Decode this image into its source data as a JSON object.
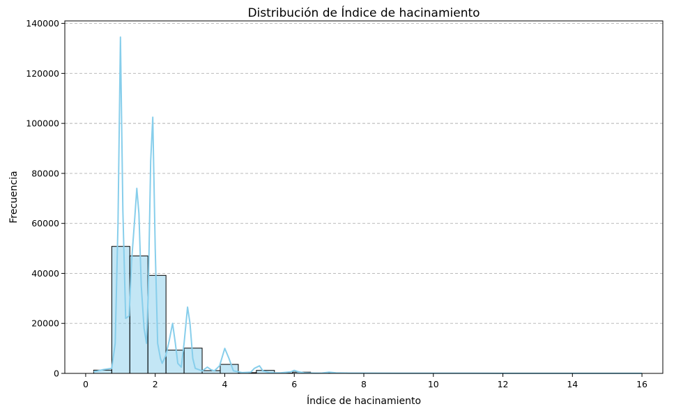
{
  "chart_data": {
    "type": "bar",
    "title": "Distribución de Índice de hacinamiento",
    "xlabel": "Índice de hacinamiento",
    "ylabel": "Frecuencia",
    "xlim": [
      -0.6,
      16.6
    ],
    "ylim": [
      0,
      141000
    ],
    "xticks": [
      0,
      2,
      4,
      6,
      8,
      10,
      12,
      14,
      16
    ],
    "yticks": [
      0,
      20000,
      40000,
      60000,
      80000,
      100000,
      120000,
      140000
    ],
    "grid": "y",
    "bar_color": "#87ceeb",
    "kde_color": "#87ceeb",
    "bins": [
      {
        "x0": 0.23,
        "x1": 0.75,
        "value": 1300
      },
      {
        "x0": 0.75,
        "x1": 1.27,
        "value": 50800
      },
      {
        "x0": 1.27,
        "x1": 1.79,
        "value": 47000
      },
      {
        "x0": 1.79,
        "x1": 2.31,
        "value": 39200
      },
      {
        "x0": 2.31,
        "x1": 2.83,
        "value": 9300
      },
      {
        "x0": 2.83,
        "x1": 3.35,
        "value": 10100
      },
      {
        "x0": 3.35,
        "x1": 3.87,
        "value": 1100
      },
      {
        "x0": 3.87,
        "x1": 4.39,
        "value": 3600
      },
      {
        "x0": 4.39,
        "x1": 4.91,
        "value": 300
      },
      {
        "x0": 4.91,
        "x1": 5.43,
        "value": 1200
      },
      {
        "x0": 5.43,
        "x1": 5.95,
        "value": 100
      },
      {
        "x0": 5.95,
        "x1": 6.47,
        "value": 500
      },
      {
        "x0": 6.47,
        "x1": 6.99,
        "value": 150
      },
      {
        "x0": 6.99,
        "x1": 7.51,
        "value": 200
      },
      {
        "x0": 7.51,
        "x1": 8.03,
        "value": 80
      },
      {
        "x0": 8.03,
        "x1": 8.55,
        "value": 60
      }
    ],
    "kde": {
      "x": [
        0.23,
        0.5,
        0.75,
        0.85,
        0.93,
        1.0,
        1.07,
        1.15,
        1.25,
        1.32,
        1.4,
        1.47,
        1.53,
        1.6,
        1.68,
        1.75,
        1.8,
        1.87,
        1.93,
        2.0,
        2.07,
        2.15,
        2.2,
        2.3,
        2.4,
        2.5,
        2.58,
        2.65,
        2.75,
        2.83,
        2.93,
        3.0,
        3.08,
        3.15,
        3.25,
        3.35,
        3.5,
        3.6,
        3.7,
        3.85,
        4.0,
        4.12,
        4.25,
        4.5,
        4.75,
        4.85,
        5.0,
        5.1,
        5.3,
        5.6,
        5.9,
        6.0,
        6.1,
        6.3,
        6.6,
        6.8,
        7.0,
        7.2,
        7.6,
        8.0,
        9.0,
        10.0,
        11.0,
        12.0,
        13.0,
        14.0,
        15.0,
        16.0
      ],
      "y": [
        600,
        1500,
        2000,
        12000,
        60000,
        134500,
        65000,
        22000,
        23000,
        45000,
        60000,
        74000,
        64000,
        35000,
        18000,
        12000,
        32000,
        85000,
        102500,
        50000,
        12000,
        6000,
        4000,
        7000,
        13000,
        20000,
        12000,
        4000,
        2500,
        12000,
        26500,
        20000,
        6000,
        2000,
        1500,
        1000,
        2500,
        1500,
        1000,
        3000,
        10000,
        6000,
        1000,
        300,
        500,
        2000,
        3000,
        1000,
        200,
        200,
        600,
        1200,
        700,
        200,
        100,
        150,
        500,
        200,
        100,
        100,
        80,
        60,
        50,
        40,
        30,
        30,
        20,
        20
      ]
    }
  }
}
